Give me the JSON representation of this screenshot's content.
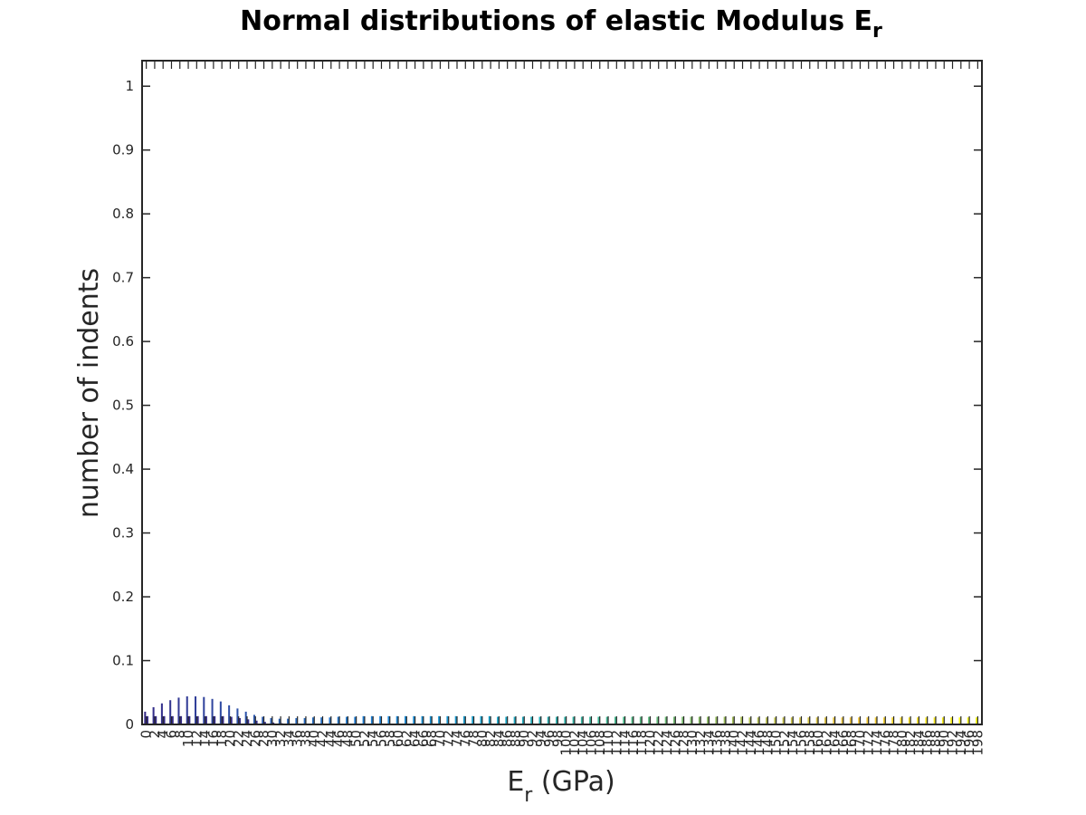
{
  "chart_data": {
    "type": "bar",
    "title": {
      "main": "Normal distributions of elastic Modulus E",
      "sub": "r"
    },
    "xlabel": {
      "main": "E",
      "sub": "r",
      "tail": " (GPa)"
    },
    "ylabel": "number of indents",
    "ylim": [
      0,
      1.04
    ],
    "yticks": [
      "0",
      "0.1",
      "0.2",
      "0.3",
      "0.4",
      "0.5",
      "0.6",
      "0.7",
      "0.8",
      "0.9",
      "1"
    ],
    "x_start": 0,
    "x_step": 2,
    "x_count": 100,
    "grid": false,
    "colormap": [
      "#352A87",
      "#2C5CB1",
      "#1E84D8",
      "#1AA7C9",
      "#46BA8C",
      "#A8BE55",
      "#F2C43A",
      "#F9FB0E"
    ],
    "series": [
      {
        "values": [
          0.02,
          0.027,
          0.033,
          0.038,
          0.042,
          0.044,
          0.044,
          0.043,
          0.04,
          0.036,
          0.03,
          0.025,
          0.02,
          0.015,
          0.012,
          0.01,
          0.009,
          0.009,
          0.01,
          0.01,
          0.011,
          0.011,
          0.011,
          0.012,
          0.012,
          0.012,
          0.013,
          0.013,
          0.013,
          0.013,
          0.013,
          0.013,
          0.013,
          0.013,
          0.013,
          0.013,
          0.013,
          0.013,
          0.013,
          0.013,
          0.013,
          0.013,
          0.012,
          0.012,
          0.012,
          0.012,
          0.012,
          0.012,
          0.012,
          0.012,
          0.012,
          0.012,
          0.012,
          0.012,
          0.012,
          0.012,
          0.012,
          0.012,
          0.012,
          0.012,
          0.012,
          0.012,
          0.012,
          0.012,
          0.012,
          0.012,
          0.012,
          0.012,
          0.012,
          0.012,
          0.012,
          0.012,
          0.011,
          0.011,
          0.011,
          0.011,
          0.011,
          0.011,
          0.011,
          0.011,
          0.011,
          0.011,
          0.011,
          0.011,
          0.011,
          0.011,
          0.011,
          0.011,
          0.011,
          0.011,
          0.011,
          0.011,
          0.011,
          0.011,
          0.011,
          0.011,
          0.011,
          0.011,
          0.011,
          0.011
        ]
      },
      {
        "values": [
          0.013,
          0.013,
          0.013,
          0.013,
          0.013,
          0.013,
          0.013,
          0.013,
          0.013,
          0.013,
          0.012,
          0.01,
          0.008,
          0.006,
          0.004,
          0.003,
          0.002,
          0.001,
          0.001,
          0.001,
          0.001,
          0.001,
          0.001,
          0.001,
          0.001,
          0.001,
          0.001,
          0.001,
          0.001,
          0.001,
          0.001,
          0.001,
          0.001,
          0.001,
          0.001,
          0.001,
          0.001,
          0.001,
          0.001,
          0.001,
          0.001,
          0.001,
          0.001,
          0.001,
          0.001,
          0.001,
          0.001,
          0.001,
          0.001,
          0.001,
          0.001,
          0.001,
          0.001,
          0.001,
          0.001,
          0.001,
          0.001,
          0.001,
          0.001,
          0.001,
          0.001,
          0.001,
          0.001,
          0.001,
          0.001,
          0.001,
          0.001,
          0.001,
          0.001,
          0.001,
          0.001,
          0.001,
          0.001,
          0.001,
          0.001,
          0.001,
          0.001,
          0.001,
          0.001,
          0.001,
          0.001,
          0.001,
          0.001,
          0.001,
          0.001,
          0.001,
          0.001,
          0.001,
          0.001,
          0.001,
          0.001,
          0.001,
          0.001,
          0.001,
          0.001,
          0.001,
          0.001,
          0.001,
          0.001,
          0.001
        ]
      }
    ]
  }
}
